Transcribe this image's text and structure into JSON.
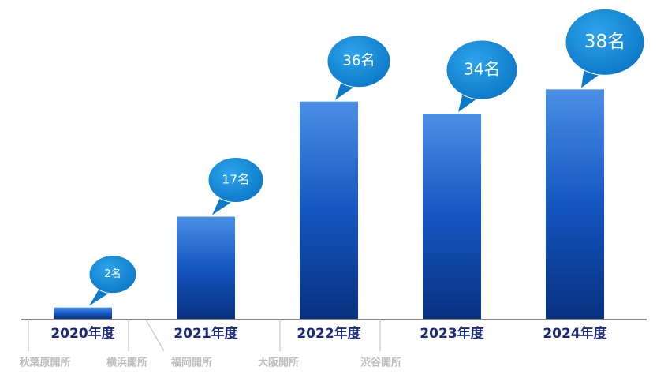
{
  "chart_data": {
    "type": "bar",
    "categories": [
      "2020年度",
      "2021年度",
      "2022年度",
      "2023年度",
      "2024年度"
    ],
    "values": [
      2,
      17,
      36,
      34,
      38
    ],
    "value_labels": [
      "2名",
      "17名",
      "36名",
      "34名",
      "38名"
    ],
    "color": "#1456c0",
    "ylim": [
      0,
      40
    ],
    "annotations": [
      "秋葉原開所",
      "横浜開所",
      "福岡開所",
      "大阪開所",
      "渋谷開所"
    ]
  }
}
